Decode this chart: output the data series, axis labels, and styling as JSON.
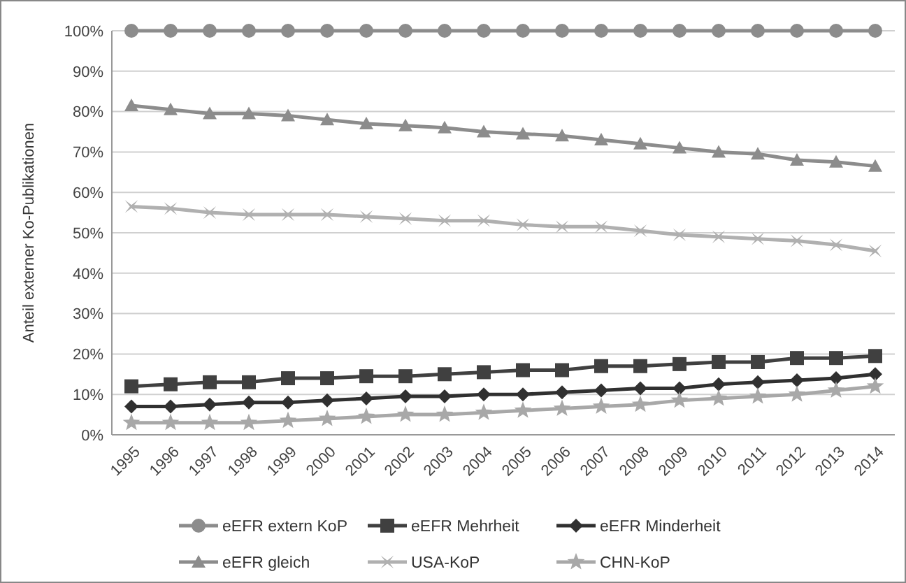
{
  "chart_data": {
    "type": "line",
    "ylabel": "Anteil externer Ko-Publikationen",
    "categories": [
      "1995",
      "1996",
      "1997",
      "1998",
      "1999",
      "2000",
      "2001",
      "2002",
      "2003",
      "2004",
      "2005",
      "2006",
      "2007",
      "2008",
      "2009",
      "2010",
      "2011",
      "2012",
      "2013",
      "2014"
    ],
    "series": [
      {
        "name": "eEFR extern KoP",
        "color": "#8c8c8c",
        "marker": "circle",
        "values": [
          100,
          100,
          100,
          100,
          100,
          100,
          100,
          100,
          100,
          100,
          100,
          100,
          100,
          100,
          100,
          100,
          100,
          100,
          100,
          100
        ]
      },
      {
        "name": "eEFR Mehrheit",
        "color": "#404040",
        "marker": "square",
        "values": [
          12,
          12.5,
          13,
          13,
          14,
          14,
          14.5,
          14.5,
          15,
          15.5,
          16,
          16,
          17,
          17,
          17.5,
          18,
          18,
          19,
          19,
          19.5
        ]
      },
      {
        "name": "eEFR Minderheit",
        "color": "#303030",
        "marker": "diamond",
        "values": [
          7,
          7,
          7.5,
          8,
          8,
          8.5,
          9,
          9.5,
          9.5,
          10,
          10,
          10.5,
          11,
          11.5,
          11.5,
          12.5,
          13,
          13.5,
          14,
          15
        ]
      },
      {
        "name": "eEFR gleich",
        "color": "#8c8c8c",
        "marker": "triangle",
        "values": [
          81.5,
          80.5,
          79.5,
          79.5,
          79,
          78,
          77,
          76.5,
          76,
          75,
          74.5,
          74,
          73,
          72,
          71,
          70,
          69.5,
          68,
          67.5,
          66.5
        ]
      },
      {
        "name": "USA-KoP",
        "color": "#b0b0b0",
        "marker": "cross",
        "values": [
          56.5,
          56,
          55,
          54.5,
          54.5,
          54.5,
          54,
          53.5,
          53,
          53,
          52,
          51.5,
          51.5,
          50.5,
          49.5,
          49,
          48.5,
          48,
          47,
          45.5
        ]
      },
      {
        "name": "CHN-KoP",
        "color": "#a8a8a8",
        "marker": "star",
        "values": [
          3,
          3,
          3,
          3,
          3.5,
          4,
          4.5,
          5,
          5,
          5.5,
          6,
          6.5,
          7,
          7.5,
          8.5,
          9,
          9.5,
          10,
          11,
          12
        ]
      }
    ],
    "ylim": [
      0,
      100
    ],
    "yticks": [
      {
        "value": 0,
        "label": "0%"
      },
      {
        "value": 10,
        "label": "10%"
      },
      {
        "value": 20,
        "label": "20%"
      },
      {
        "value": 30,
        "label": "30%"
      },
      {
        "value": 40,
        "label": "40%"
      },
      {
        "value": 50,
        "label": "50%"
      },
      {
        "value": 60,
        "label": "60%"
      },
      {
        "value": 70,
        "label": "70%"
      },
      {
        "value": 80,
        "label": "80%"
      },
      {
        "value": 90,
        "label": "90%"
      },
      {
        "value": 100,
        "label": "100%"
      }
    ],
    "grid": "y",
    "legend": "bottom",
    "line_style": "solid"
  }
}
